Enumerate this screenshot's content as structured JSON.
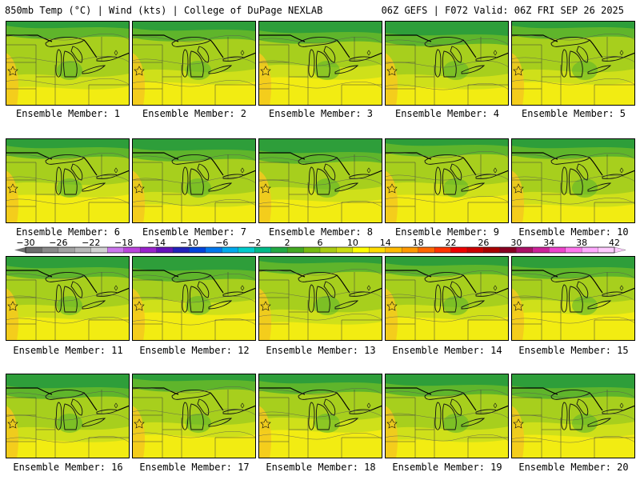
{
  "header": {
    "left_title": "850mb Temp (°C) | Wind (kts) | College of DuPage NEXLAB",
    "right_title": "06Z GEFS | F072 Valid: 06Z FRI SEP 26 2025"
  },
  "panels": [
    {
      "label": "Ensemble Member: 1"
    },
    {
      "label": "Ensemble Member: 2"
    },
    {
      "label": "Ensemble Member: 3"
    },
    {
      "label": "Ensemble Member: 4"
    },
    {
      "label": "Ensemble Member: 5"
    },
    {
      "label": "Ensemble Member: 6"
    },
    {
      "label": "Ensemble Member: 7"
    },
    {
      "label": "Ensemble Member: 8"
    },
    {
      "label": "Ensemble Member: 9"
    },
    {
      "label": "Ensemble Member: 10"
    },
    {
      "label": "Ensemble Member: 11"
    },
    {
      "label": "Ensemble Member: 12"
    },
    {
      "label": "Ensemble Member: 13"
    },
    {
      "label": "Ensemble Member: 14"
    },
    {
      "label": "Ensemble Member: 15"
    },
    {
      "label": "Ensemble Member: 16"
    },
    {
      "label": "Ensemble Member: 17"
    },
    {
      "label": "Ensemble Member: 18"
    },
    {
      "label": "Ensemble Member: 19"
    },
    {
      "label": "Ensemble Member: 20"
    }
  ],
  "colorbar": {
    "tick_labels": [
      "−30",
      "−26",
      "−22",
      "−18",
      "−14",
      "−10",
      "−6",
      "−2",
      "2",
      "6",
      "10",
      "14",
      "18",
      "22",
      "26",
      "30",
      "34",
      "38",
      "42"
    ],
    "colors": [
      "#6e6e6e",
      "#8a8a8a",
      "#a2a2a2",
      "#b8b8b8",
      "#d2d2d2",
      "#cc77ee",
      "#bb44dd",
      "#9922cc",
      "#6611bb",
      "#2222bb",
      "#0044dd",
      "#0077ee",
      "#00aaee",
      "#00cccc",
      "#00bb88",
      "#22aa44",
      "#44aa22",
      "#77bb11",
      "#aacc11",
      "#ccdd11",
      "#ffff00",
      "#ffdd00",
      "#ffbb00",
      "#ff9900",
      "#ff6600",
      "#ff3300",
      "#ee0000",
      "#cc0000",
      "#aa0000",
      "#880022",
      "#aa1166",
      "#cc2299",
      "#ee44cc",
      "#ff77ee",
      "#ffaaff",
      "#ffccff"
    ]
  },
  "field_colors": {
    "dark_green": "#2e9e3a",
    "green": "#5fb52b",
    "yellow_green": "#a7cf1d",
    "light_yellow_green": "#cfe01a",
    "yellow": "#f2ec12",
    "orange_yellow": "#f4c81e"
  }
}
